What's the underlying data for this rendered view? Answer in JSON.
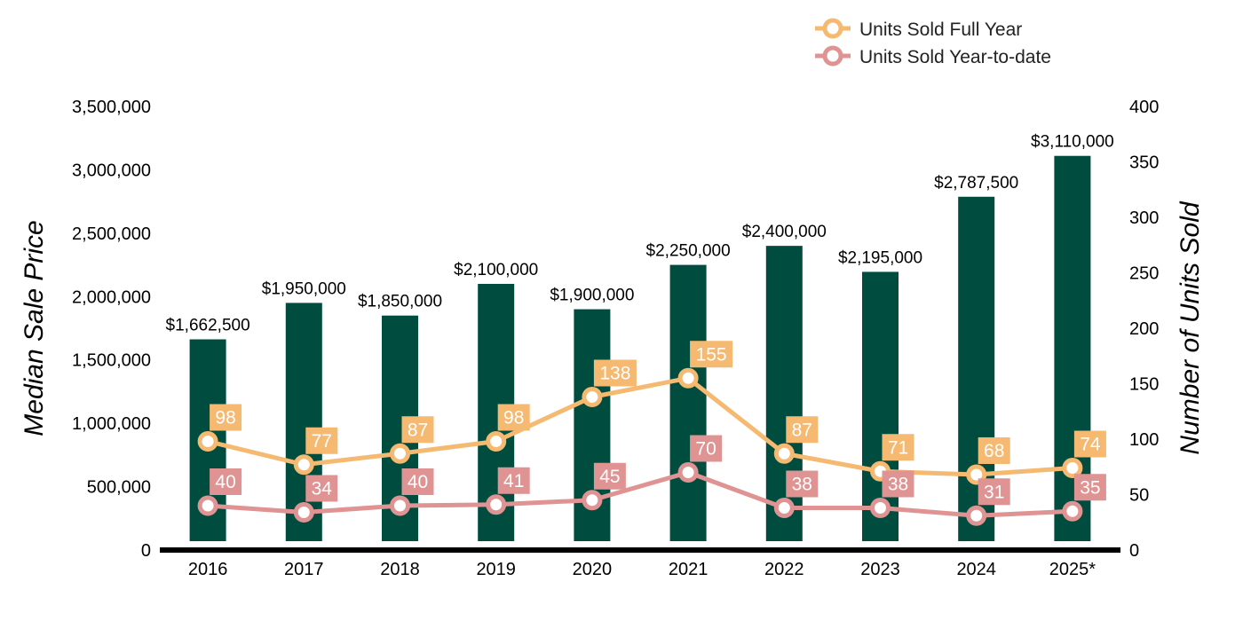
{
  "chart_data": {
    "type": "bar",
    "categories": [
      "2016",
      "2017",
      "2018",
      "2019",
      "2020",
      "2021",
      "2022",
      "2023",
      "2024",
      "2025*"
    ],
    "bars": {
      "values": [
        1662500,
        1950000,
        1850000,
        2100000,
        1900000,
        2250000,
        2400000,
        2195000,
        2787500,
        3110000
      ],
      "labels": [
        "$1,662,500",
        "$1,950,000",
        "$1,850,000",
        "$2,100,000",
        "$1,900,000",
        "$2,250,000",
        "$2,400,000",
        "$2,195,000",
        "$2,787,500",
        "$3,110,000"
      ],
      "color": "#004d40"
    },
    "series": [
      {
        "name": "Units Sold Full Year",
        "values": [
          98,
          77,
          87,
          98,
          138,
          155,
          87,
          71,
          68,
          74
        ],
        "color": "#f5b971"
      },
      {
        "name": "Units Sold Year-to-date",
        "values": [
          40,
          34,
          40,
          41,
          45,
          70,
          38,
          38,
          31,
          35
        ],
        "color": "#e09393"
      }
    ],
    "ylabel": "Median Sale Price",
    "y2label": "Number of Units Sold",
    "ylim": [
      0,
      3500000
    ],
    "y2lim": [
      0,
      400
    ],
    "y_ticks": [
      "0",
      "500,000",
      "1,000,000",
      "1,500,000",
      "2,000,000",
      "2,500,000",
      "3,000,000",
      "3,500,000"
    ],
    "y2_ticks": [
      "0",
      "50",
      "100",
      "150",
      "200",
      "250",
      "300",
      "350",
      "400"
    ],
    "grid": false,
    "legend_position": "top-right"
  }
}
